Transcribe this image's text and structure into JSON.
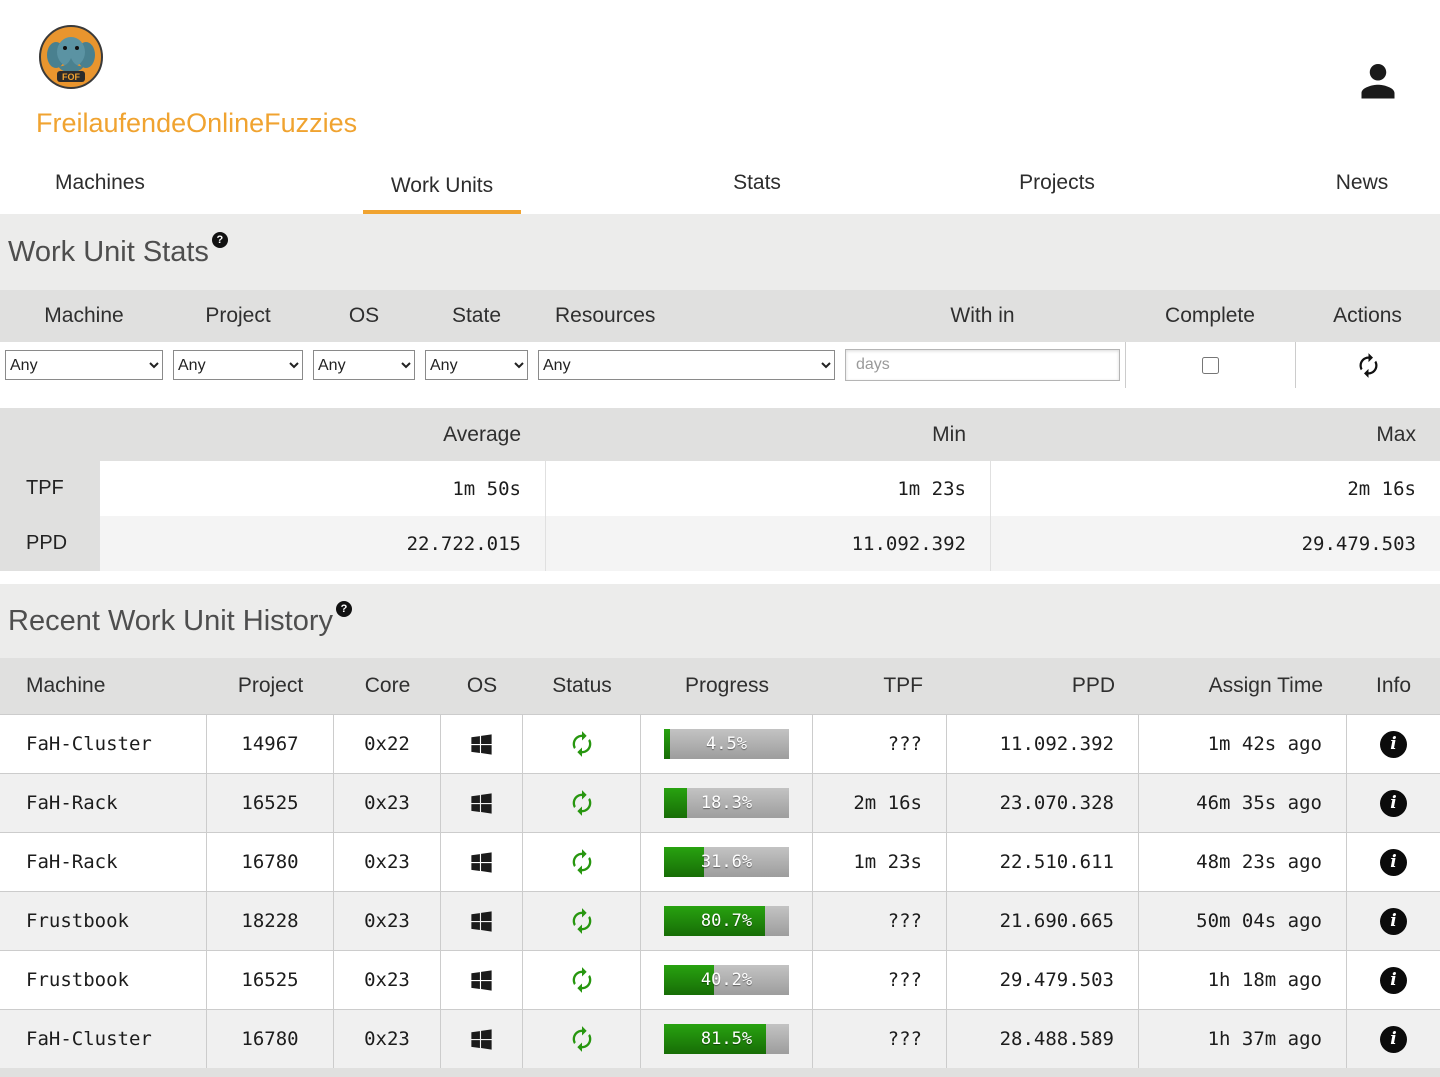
{
  "accent_color": "#f0a330",
  "header": {
    "site_title": "FreilaufendeOnlineFuzzies",
    "logo_text": "FOF"
  },
  "nav": {
    "active_index": 1,
    "items": [
      {
        "label": "Machines"
      },
      {
        "label": "Work Units"
      },
      {
        "label": "Stats"
      },
      {
        "label": "Projects"
      },
      {
        "label": "News"
      }
    ]
  },
  "wu_stats": {
    "title": "Work Unit Stats",
    "help_glyph": "?",
    "filters": {
      "headers": [
        "Machine",
        "Project",
        "OS",
        "State",
        "Resources",
        "With in",
        "Complete",
        "Actions"
      ],
      "machine_value": "Any",
      "project_value": "Any",
      "os_value": "Any",
      "state_value": "Any",
      "resources_value": "Any",
      "within_placeholder": "days",
      "complete_checked": false
    },
    "summary": {
      "col_headers": [
        "Average",
        "Min",
        "Max"
      ],
      "rows": [
        {
          "label": "TPF",
          "avg": "1m 50s",
          "min": "1m 23s",
          "max": "2m 16s"
        },
        {
          "label": "PPD",
          "avg": "22.722.015",
          "min": "11.092.392",
          "max": "29.479.503"
        }
      ]
    }
  },
  "history": {
    "title": "Recent Work Unit History",
    "help_glyph": "?",
    "columns": [
      "Machine",
      "Project",
      "Core",
      "OS",
      "Status",
      "Progress",
      "TPF",
      "PPD",
      "Assign Time",
      "Info"
    ],
    "rows": [
      {
        "machine": "FaH-Cluster",
        "project": "14967",
        "core": "0x22",
        "os": "windows",
        "status": "running",
        "progress_pct": 4.5,
        "progress_label": "4.5%",
        "tpf": "???",
        "ppd": "11.092.392",
        "assign_time": "1m 42s ago"
      },
      {
        "machine": "FaH-Rack",
        "project": "16525",
        "core": "0x23",
        "os": "windows",
        "status": "running",
        "progress_pct": 18.3,
        "progress_label": "18.3%",
        "tpf": "2m 16s",
        "ppd": "23.070.328",
        "assign_time": "46m 35s ago"
      },
      {
        "machine": "FaH-Rack",
        "project": "16780",
        "core": "0x23",
        "os": "windows",
        "status": "running",
        "progress_pct": 31.6,
        "progress_label": "31.6%",
        "tpf": "1m 23s",
        "ppd": "22.510.611",
        "assign_time": "48m 23s ago"
      },
      {
        "machine": "Frustbook",
        "project": "18228",
        "core": "0x23",
        "os": "windows",
        "status": "running",
        "progress_pct": 80.7,
        "progress_label": "80.7%",
        "tpf": "???",
        "ppd": "21.690.665",
        "assign_time": "50m 04s ago"
      },
      {
        "machine": "Frustbook",
        "project": "16525",
        "core": "0x23",
        "os": "windows",
        "status": "running",
        "progress_pct": 40.2,
        "progress_label": "40.2%",
        "tpf": "???",
        "ppd": "29.479.503",
        "assign_time": "1h 18m ago"
      },
      {
        "machine": "FaH-Cluster",
        "project": "16780",
        "core": "0x23",
        "os": "windows",
        "status": "running",
        "progress_pct": 81.5,
        "progress_label": "81.5%",
        "tpf": "???",
        "ppd": "28.488.589",
        "assign_time": "1h 37m ago"
      }
    ]
  }
}
